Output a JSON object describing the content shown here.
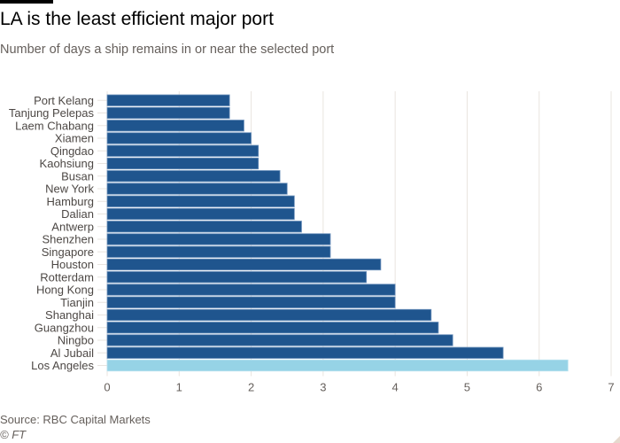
{
  "header": {
    "title": "LA is the least efficient major port",
    "subtitle": "Number of days a ship remains in or near the selected port"
  },
  "footer": {
    "source": "Source: RBC Capital Markets",
    "credit": "© FT"
  },
  "colors": {
    "bar": "#1f558e",
    "highlight": "#96d3e6",
    "grid": "#e9e4df",
    "tick_label": "#66605c"
  },
  "chart_data": {
    "type": "bar",
    "orientation": "horizontal",
    "title": "LA is the least efficient major port",
    "subtitle": "Number of days a ship remains in or near the selected port",
    "xlabel": "",
    "ylabel": "",
    "xlim": [
      0,
      7
    ],
    "xticks": [
      0,
      1,
      2,
      3,
      4,
      5,
      6,
      7
    ],
    "grid": true,
    "legend": "none",
    "highlighted_category": "Los Angeles",
    "categories": [
      "Port Kelang",
      "Tanjung Pelepas",
      "Laem Chabang",
      "Xiamen",
      "Qingdao",
      "Kaohsiung",
      "Busan",
      "New York",
      "Hamburg",
      "Dalian",
      "Antwerp",
      "Shenzhen",
      "Singapore",
      "Houston",
      "Rotterdam",
      "Hong Kong",
      "Tianjin",
      "Shanghai",
      "Guangzhou",
      "Ningbo",
      "Al Jubail",
      "Los Angeles"
    ],
    "values": [
      1.7,
      1.7,
      1.9,
      2.0,
      2.1,
      2.1,
      2.4,
      2.5,
      2.6,
      2.6,
      2.7,
      3.1,
      3.1,
      3.8,
      3.6,
      4.0,
      4.0,
      4.5,
      4.6,
      4.8,
      5.5,
      6.4
    ]
  }
}
